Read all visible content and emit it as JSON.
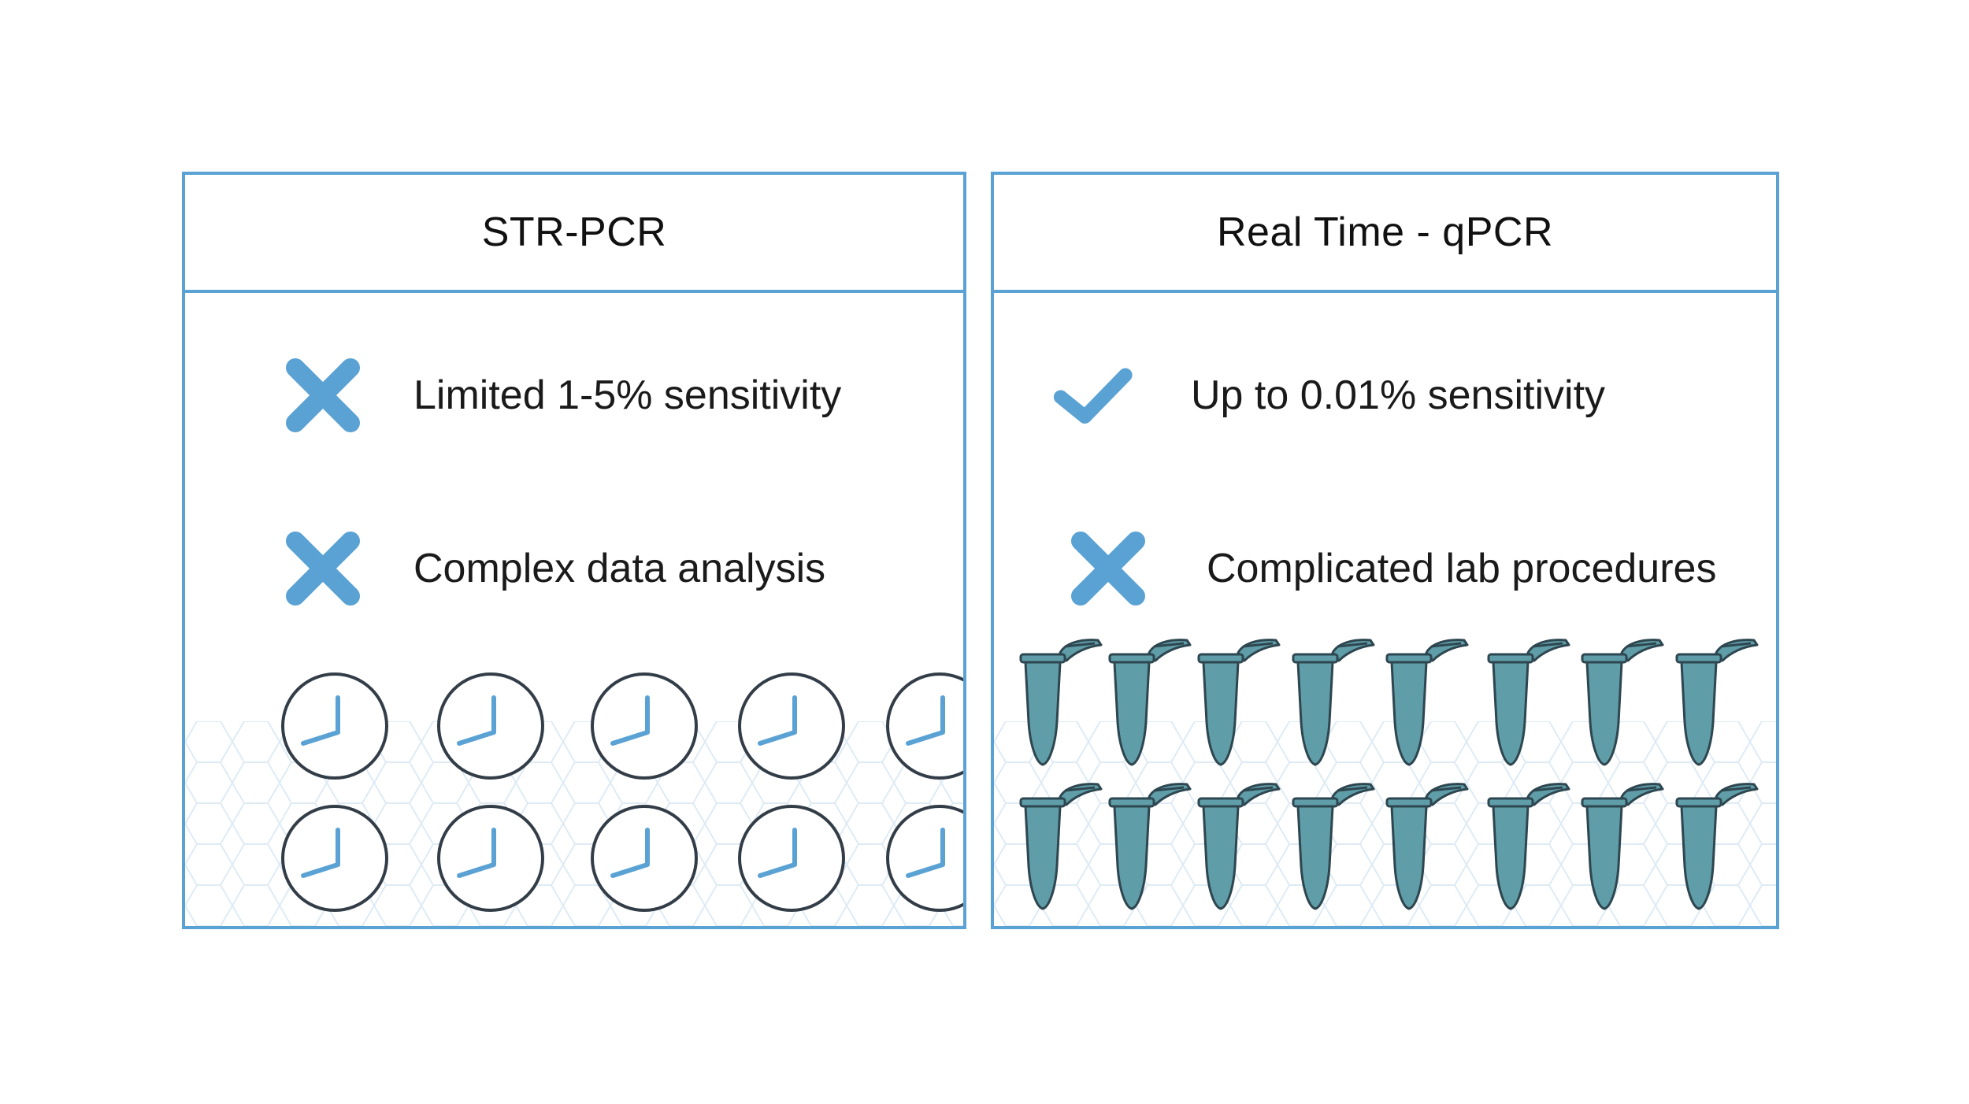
{
  "panels": {
    "left": {
      "title": "STR-PCR",
      "items": [
        {
          "icon": "cross-icon",
          "text": "Limited 1-5% sensitivity"
        },
        {
          "icon": "cross-icon",
          "text": "Complex data analysis"
        }
      ],
      "illustration": {
        "icon": "clock-icon",
        "rows": 2,
        "cols": 5
      }
    },
    "right": {
      "title": "Real Time - qPCR",
      "items": [
        {
          "icon": "check-icon",
          "text": "Up to 0.01% sensitivity"
        },
        {
          "icon": "cross-icon",
          "text": "Complicated lab procedures"
        }
      ],
      "illustration": {
        "icon": "pcr-tube-icon",
        "rows": 2,
        "cols": 8
      }
    }
  },
  "colors": {
    "border": "#5aa2d4",
    "mark": "#5aa2d4",
    "clock_outline": "#333d48",
    "clock_hands": "#5aa2d4",
    "tube_fill": "#5f9ea8",
    "tube_outline": "#2e4650"
  }
}
